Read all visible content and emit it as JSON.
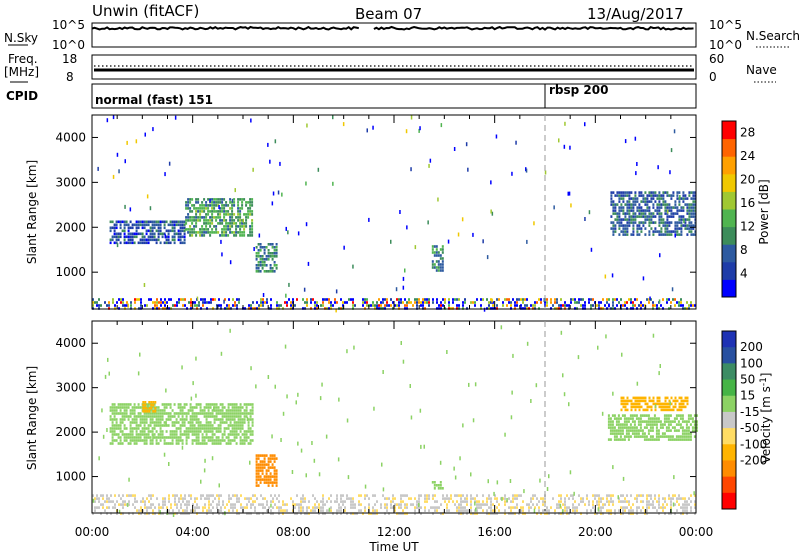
{
  "header": {
    "station": "Unwin (fitACF)",
    "beam": "Beam 07",
    "date": "13/Aug/2017"
  },
  "status_panels": {
    "nsky_label": "N.Sky",
    "nsky_ticks": [
      "10^5",
      "10^0"
    ],
    "nsearch_label": "N.Search",
    "nsearch_ticks": [
      "10^5",
      "10^0"
    ],
    "freq_label": "Freq.",
    "freq_unit": "[MHz]",
    "freq_ticks": [
      "18",
      "8"
    ],
    "nave_label": "Nave",
    "nave_ticks": [
      "60",
      "0"
    ],
    "cpid_label": "CPID",
    "cpid_segments": [
      {
        "label": "normal (fast) 151",
        "start_hour": 0
      },
      {
        "label": "rbsp 200",
        "start_hour": 18
      }
    ]
  },
  "x_axis": {
    "label": "Time UT",
    "ticks": [
      "00:00",
      "04:00",
      "08:00",
      "12:00",
      "16:00",
      "20:00",
      "00:00"
    ]
  },
  "y_axis_label": "Slant Range [km]",
  "y_ticks": [
    "4000",
    "3000",
    "2000",
    "1000"
  ],
  "colors": {
    "power": [
      "#0000ff",
      "#1e3ca8",
      "#2d5aa0",
      "#3c8c5a",
      "#50b450",
      "#a0c832",
      "#f0c800",
      "#ffa000",
      "#ff6400",
      "#ff0000"
    ],
    "velocity": [
      "#1e32b4",
      "#2850a0",
      "#3c8c64",
      "#46b446",
      "#8cd264",
      "#c8c8c8",
      "#ffdc64",
      "#ffb400",
      "#ff8c00",
      "#ff4600",
      "#ff0000"
    ]
  },
  "chart_data": [
    {
      "type": "heatmap",
      "panel": "power",
      "xlabel": "Time UT",
      "ylabel": "Slant Range [km]",
      "xlim": [
        0,
        24
      ],
      "ylim": [
        180,
        4500
      ],
      "colorbar_label": "Power [dB]",
      "colorbar_ticks": [
        4,
        8,
        12,
        16,
        20,
        24,
        28
      ],
      "colorbar_range": [
        0,
        30
      ],
      "regions": [
        {
          "t0": 0.7,
          "t1": 3.7,
          "r0": 1650,
          "r1": 2150,
          "value": 6
        },
        {
          "t0": 3.7,
          "t1": 6.4,
          "r0": 1800,
          "r1": 2650,
          "value": 12
        },
        {
          "t0": 6.5,
          "t1": 7.3,
          "r0": 1000,
          "r1": 1650,
          "value": 10
        },
        {
          "t0": 13.5,
          "t1": 13.9,
          "r0": 1000,
          "r1": 1600,
          "value": 10
        },
        {
          "t0": 20.6,
          "t1": 24.0,
          "r0": 1800,
          "r1": 2800,
          "value": 7
        },
        {
          "t0": 0.0,
          "t1": 24.0,
          "r0": 180,
          "r1": 420,
          "value": 9
        }
      ]
    },
    {
      "type": "heatmap",
      "panel": "velocity",
      "xlabel": "Time UT",
      "ylabel": "Slant Range [km]",
      "xlim": [
        0,
        24
      ],
      "ylim": [
        180,
        4500
      ],
      "colorbar_label": "Velocity [m s^-1]",
      "colorbar_ticks": [
        200,
        100,
        50,
        15,
        -15,
        -50,
        -100,
        -200
      ],
      "regions": [
        {
          "t0": 0.7,
          "t1": 6.4,
          "r0": 1750,
          "r1": 2650,
          "value": 0
        },
        {
          "t0": 6.5,
          "t1": 7.3,
          "r0": 800,
          "r1": 1500,
          "value": -220
        },
        {
          "t0": 2.0,
          "t1": 2.5,
          "r0": 2450,
          "r1": 2700,
          "value": -180
        },
        {
          "t0": 13.5,
          "t1": 13.9,
          "r0": 700,
          "r1": 900,
          "value": 0
        },
        {
          "t0": 20.5,
          "t1": 24.0,
          "r0": 1800,
          "r1": 2400,
          "value": 0
        },
        {
          "t0": 21.0,
          "t1": 23.7,
          "r0": 2500,
          "r1": 2800,
          "value": -180
        },
        {
          "t0": 0.0,
          "t1": 12.0,
          "r0": 180,
          "r1": 600,
          "value": -40
        },
        {
          "t0": 12.0,
          "t1": 24.0,
          "r0": 180,
          "r1": 600,
          "value": -45
        }
      ]
    }
  ]
}
